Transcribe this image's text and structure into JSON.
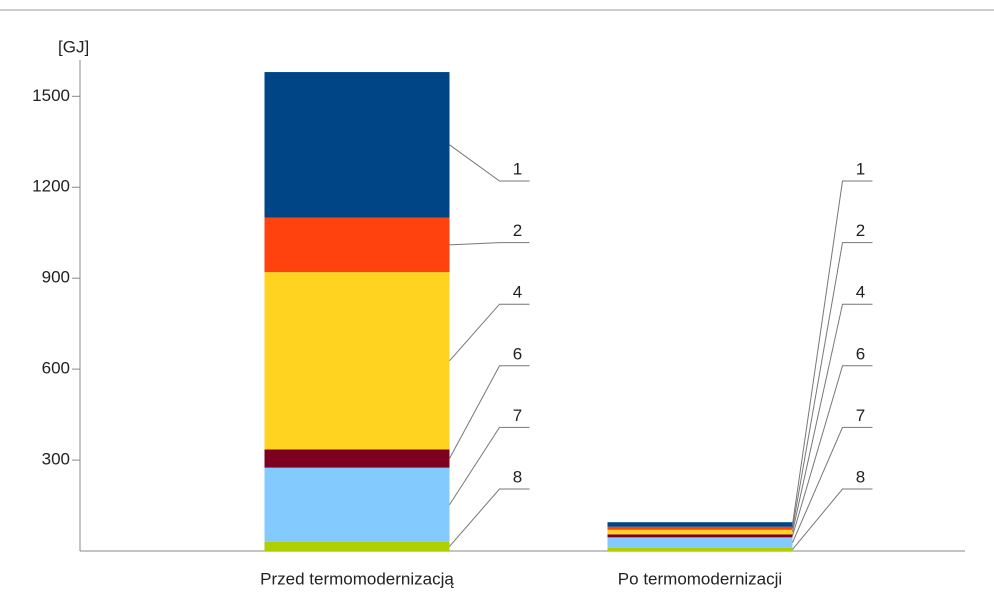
{
  "chart_data": {
    "type": "stacked_bar",
    "y_label": "[GJ]",
    "categories": [
      "Przed termomodernizacją",
      "Po termomodernizacji"
    ],
    "series": [
      {
        "name": "8",
        "color": "#aecf00",
        "values": [
          30,
          10
        ]
      },
      {
        "name": "7",
        "color": "#83caff",
        "values": [
          245,
          35
        ]
      },
      {
        "name": "6",
        "color": "#7e0021",
        "values": [
          60,
          10
        ]
      },
      {
        "name": "4",
        "color": "#ffd320",
        "values": [
          585,
          15
        ]
      },
      {
        "name": "2",
        "color": "#ff420e",
        "values": [
          180,
          10
        ]
      },
      {
        "name": "1",
        "color": "#004586",
        "values": [
          480,
          15
        ]
      }
    ],
    "ylim": [
      0,
      1600
    ],
    "yticks": [
      300,
      600,
      900,
      1200,
      1500
    ]
  }
}
